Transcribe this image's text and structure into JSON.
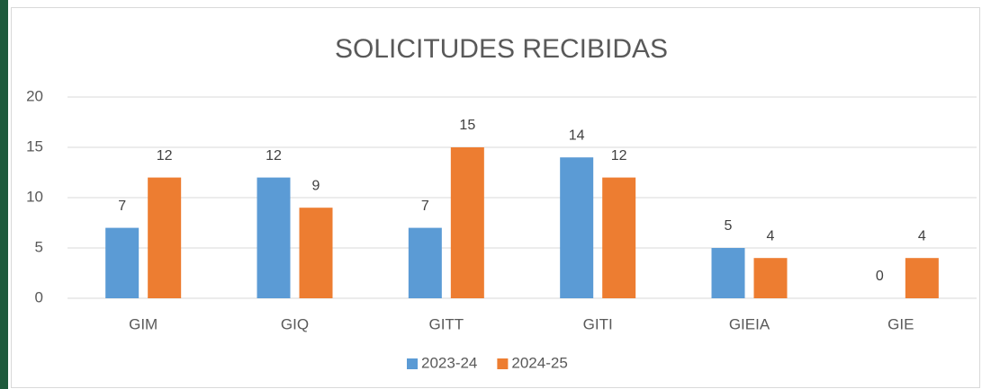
{
  "chart_data": {
    "type": "bar",
    "title": "SOLICITUDES RECIBIDAS",
    "categories": [
      "GIM",
      "GIQ",
      "GITT",
      "GITI",
      "GIEIA",
      "GIE"
    ],
    "series": [
      {
        "name": "2023-24",
        "color": "#5b9bd5",
        "values": [
          7,
          12,
          7,
          14,
          5,
          0
        ]
      },
      {
        "name": "2024-25",
        "color": "#ed7d31",
        "values": [
          12,
          9,
          15,
          12,
          4,
          4
        ]
      }
    ],
    "ylim": [
      0,
      20
    ],
    "yticks": [
      0,
      5,
      10,
      15,
      20
    ],
    "grid": true,
    "legend": "bottom"
  }
}
